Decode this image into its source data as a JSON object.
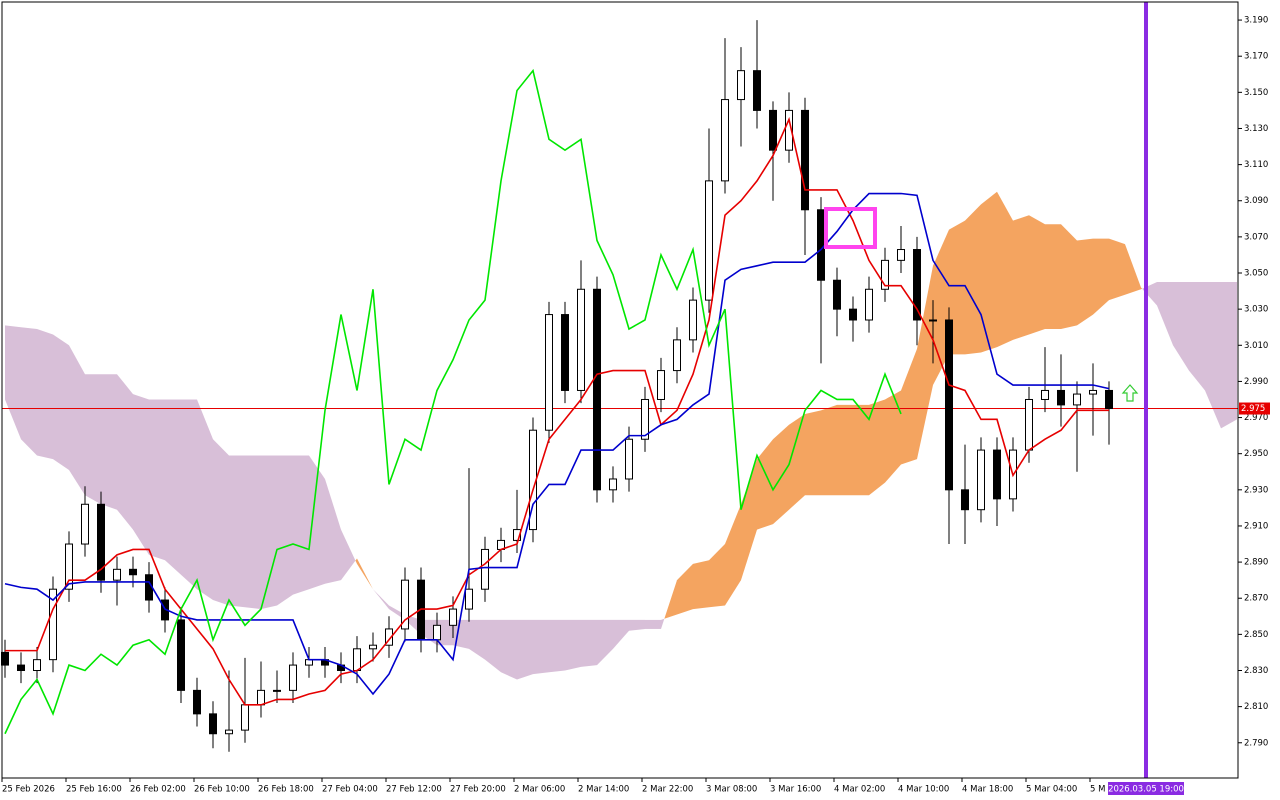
{
  "chart_data": {
    "type": "candlestick",
    "x": [
      "25 Feb 2026",
      null,
      null,
      null,
      "25 Feb 16:00",
      null,
      null,
      null,
      "26 Feb 02:00",
      null,
      null,
      null,
      "26 Feb 10:00",
      null,
      null,
      null,
      "26 Feb 18:00",
      null,
      null,
      null,
      "27 Feb 04:00",
      null,
      null,
      null,
      "27 Feb 12:00",
      null,
      null,
      null,
      "27 Feb 20:00",
      null,
      null,
      null,
      "2 Mar 06:00",
      null,
      null,
      null,
      "2 Mar 14:00",
      null,
      null,
      null,
      "2 Mar 22:00",
      null,
      null,
      null,
      "3 Mar 08:00",
      null,
      null,
      null,
      "3 Mar 16:00",
      null,
      null,
      null,
      "4 Mar 02:00",
      null,
      null,
      null,
      "4 Mar 10:00",
      null,
      null,
      null,
      "4 Mar 18:00",
      null,
      null,
      null,
      "5 Mar 04:00",
      null,
      null,
      null,
      "5 M",
      null,
      null,
      null,
      null,
      null,
      null,
      null,
      null,
      null
    ],
    "open": [
      2.84,
      2.833,
      2.83,
      2.836,
      2.875,
      2.9,
      2.922,
      2.88,
      2.886,
      2.883,
      2.869,
      2.858,
      2.819,
      2.806,
      2.795,
      2.797,
      2.811,
      2.819,
      2.819,
      2.833,
      2.836,
      2.833,
      2.83,
      2.842,
      2.844,
      2.853,
      2.88,
      2.847,
      2.855,
      2.864,
      2.875,
      2.897,
      2.902,
      2.908,
      2.963,
      3.027,
      2.985,
      3.041,
      2.93,
      2.936,
      2.958,
      2.98,
      2.996,
      3.013,
      3.035,
      3.101,
      3.146,
      3.162,
      3.14,
      3.118,
      3.14,
      3.085,
      3.046,
      3.03,
      3.024,
      3.041,
      3.057,
      3.063,
      3.024,
      3.024,
      2.93,
      2.919,
      2.952,
      2.925,
      2.952,
      2.98,
      2.985,
      2.977,
      2.983,
      2.985,
      null,
      null,
      null,
      null,
      null,
      null,
      null,
      null
    ],
    "high": [
      2.847,
      2.84,
      2.843,
      2.882,
      2.907,
      2.932,
      2.929,
      2.893,
      2.893,
      2.89,
      2.876,
      2.865,
      2.826,
      2.813,
      2.83,
      2.837,
      2.835,
      2.83,
      2.84,
      2.843,
      2.843,
      2.84,
      2.849,
      2.851,
      2.86,
      2.887,
      2.887,
      2.862,
      2.871,
      2.942,
      2.904,
      2.909,
      2.93,
      2.97,
      3.034,
      3.034,
      3.057,
      3.048,
      2.943,
      2.965,
      2.987,
      3.003,
      3.02,
      3.042,
      3.13,
      3.18,
      3.175,
      3.19,
      3.145,
      3.15,
      3.147,
      3.092,
      3.053,
      3.037,
      3.048,
      3.064,
      3.076,
      3.07,
      3.035,
      3.031,
      2.955,
      2.959,
      2.959,
      2.959,
      2.987,
      3.009,
      3.005,
      2.99,
      3.0,
      2.99,
      null,
      null,
      null,
      null,
      null,
      null,
      null,
      null
    ],
    "low": [
      2.826,
      2.823,
      2.823,
      2.829,
      2.868,
      2.893,
      2.873,
      2.866,
      2.876,
      2.862,
      2.851,
      2.812,
      2.799,
      2.787,
      2.785,
      2.79,
      2.804,
      2.812,
      2.812,
      2.826,
      2.826,
      2.823,
      2.823,
      2.835,
      2.837,
      2.846,
      2.84,
      2.84,
      2.848,
      2.857,
      2.868,
      2.89,
      2.895,
      2.901,
      2.956,
      2.978,
      2.978,
      2.923,
      2.923,
      2.929,
      2.951,
      2.973,
      2.989,
      3.006,
      3.028,
      3.094,
      3.12,
      3.13,
      3.09,
      3.111,
      3.06,
      3.0,
      3.015,
      3.012,
      3.017,
      3.034,
      3.05,
      3.01,
      3.0,
      2.9,
      2.9,
      2.912,
      2.91,
      2.918,
      2.945,
      2.973,
      2.965,
      2.94,
      2.96,
      2.955,
      null,
      null,
      null,
      null,
      null,
      null,
      null,
      null
    ],
    "close": [
      2.833,
      2.83,
      2.836,
      2.875,
      2.9,
      2.922,
      2.88,
      2.886,
      2.883,
      2.869,
      2.858,
      2.819,
      2.806,
      2.795,
      2.797,
      2.811,
      2.819,
      2.819,
      2.833,
      2.836,
      2.833,
      2.83,
      2.842,
      2.844,
      2.853,
      2.88,
      2.847,
      2.855,
      2.864,
      2.875,
      2.897,
      2.902,
      2.908,
      2.963,
      3.027,
      2.985,
      3.041,
      2.93,
      2.936,
      2.958,
      2.98,
      2.996,
      3.013,
      3.035,
      3.101,
      3.146,
      3.162,
      3.14,
      3.118,
      3.14,
      3.085,
      3.046,
      3.03,
      3.024,
      3.041,
      3.057,
      3.063,
      3.024,
      3.024,
      2.93,
      2.919,
      2.952,
      2.925,
      2.952,
      2.98,
      2.985,
      2.977,
      2.983,
      2.985,
      2.975,
      null,
      null,
      null,
      null,
      null,
      null,
      null,
      null
    ],
    "bull_color": "#ffffff",
    "bear_color": "#000000",
    "lines": [
      {
        "color": "#e60000",
        "values": [
          2.841,
          2.841,
          2.841,
          2.864,
          2.88,
          2.88,
          2.886,
          2.894,
          2.897,
          2.897,
          2.875,
          2.864,
          2.853,
          2.842,
          2.825,
          2.811,
          2.811,
          2.814,
          2.814,
          2.817,
          2.819,
          2.828,
          2.83,
          2.836,
          2.847,
          2.858,
          2.864,
          2.864,
          2.866,
          2.883,
          2.889,
          2.897,
          2.9,
          2.93,
          2.958,
          2.969,
          2.98,
          2.994,
          2.996,
          2.996,
          2.996,
          2.966,
          2.974,
          2.994,
          3.024,
          3.082,
          3.09,
          3.101,
          3.115,
          3.135,
          3.096,
          3.096,
          3.096,
          3.079,
          3.057,
          3.043,
          3.043,
          3.03,
          3.013,
          2.988,
          2.985,
          2.969,
          2.969,
          2.938,
          2.952,
          2.958,
          2.963,
          2.974,
          2.974,
          2.974,
          null,
          null,
          null,
          null,
          null,
          null,
          null,
          null
        ]
      },
      {
        "color": "#0000cd",
        "values": [
          2.878,
          2.876,
          2.875,
          2.869,
          2.878,
          2.879,
          2.879,
          2.879,
          2.879,
          2.879,
          2.864,
          2.86,
          2.858,
          2.858,
          2.858,
          2.858,
          2.858,
          2.858,
          2.858,
          2.836,
          2.836,
          2.833,
          2.828,
          2.817,
          2.828,
          2.847,
          2.847,
          2.847,
          2.836,
          2.886,
          2.887,
          2.887,
          2.887,
          2.922,
          2.933,
          2.933,
          2.952,
          2.952,
          2.952,
          2.96,
          2.96,
          2.966,
          2.969,
          2.977,
          2.983,
          3.046,
          3.052,
          3.054,
          3.056,
          3.056,
          3.056,
          3.063,
          3.073,
          3.085,
          3.094,
          3.094,
          3.094,
          3.093,
          3.057,
          3.043,
          3.043,
          3.027,
          2.994,
          2.988,
          2.988,
          2.988,
          2.988,
          2.988,
          2.988,
          2.986,
          null,
          null,
          null,
          null,
          null,
          null,
          null,
          null
        ]
      },
      {
        "color": "#00e600",
        "values": [
          2.795,
          2.814,
          2.825,
          2.806,
          2.833,
          2.83,
          2.839,
          2.833,
          2.844,
          2.847,
          2.839,
          2.864,
          2.88,
          2.847,
          2.869,
          2.855,
          2.864,
          2.897,
          2.9,
          2.897,
          2.974,
          3.027,
          2.985,
          3.041,
          2.933,
          2.958,
          2.952,
          2.985,
          3.002,
          3.024,
          3.035,
          3.101,
          3.151,
          3.162,
          3.124,
          3.118,
          3.124,
          3.068,
          3.049,
          3.019,
          3.024,
          3.06,
          3.041,
          3.063,
          3.01,
          3.03,
          2.919,
          2.949,
          2.93,
          2.944,
          2.974,
          2.985,
          2.98,
          2.98,
          2.969,
          2.994,
          2.972,
          null,
          null,
          null,
          null,
          null,
          null,
          null,
          null,
          null,
          null,
          null,
          null,
          null,
          null,
          null,
          null,
          null,
          null,
          null,
          null,
          null
        ]
      }
    ],
    "cloud": {
      "span_a": [
        2.98,
        2.958,
        2.949,
        2.947,
        2.941,
        2.927,
        2.922,
        2.919,
        2.908,
        2.894,
        2.891,
        2.883,
        2.875,
        2.869,
        2.866,
        2.865,
        2.864,
        2.866,
        2.872,
        2.875,
        2.878,
        2.88,
        2.892,
        2.875,
        2.864,
        2.858,
        2.85,
        2.844,
        2.844,
        2.842,
        2.836,
        2.829,
        2.825,
        2.828,
        2.829,
        2.83,
        2.832,
        2.833,
        2.842,
        2.852,
        2.853,
        2.853,
        2.88,
        2.889,
        2.891,
        2.9,
        2.922,
        2.947,
        2.958,
        2.966,
        2.972,
        2.974,
        2.977,
        2.977,
        2.977,
        2.98,
        2.985,
        3.008,
        3.054,
        3.074,
        3.079,
        3.088,
        3.095,
        3.079,
        3.082,
        3.077,
        3.077,
        3.068,
        3.069,
        3.069,
        3.066,
        3.042,
        3.032,
        3.01,
        2.996,
        2.985,
        2.964,
        2.969
      ],
      "span_b": [
        3.021,
        3.02,
        3.019,
        3.016,
        3.01,
        2.994,
        2.994,
        2.994,
        2.983,
        2.98,
        2.98,
        2.98,
        2.98,
        2.958,
        2.949,
        2.949,
        2.949,
        2.949,
        2.949,
        2.949,
        2.936,
        2.908,
        2.889,
        2.875,
        2.866,
        2.861,
        2.858,
        2.858,
        2.858,
        2.858,
        2.858,
        2.858,
        2.858,
        2.858,
        2.858,
        2.858,
        2.858,
        2.858,
        2.858,
        2.858,
        2.858,
        2.858,
        2.861,
        2.864,
        2.865,
        2.866,
        2.88,
        2.908,
        2.911,
        2.919,
        2.927,
        2.927,
        2.927,
        2.927,
        2.927,
        2.934,
        2.944,
        2.947,
        2.988,
        3.005,
        3.005,
        3.006,
        3.009,
        3.013,
        3.016,
        3.019,
        3.019,
        3.021,
        3.027,
        3.035,
        3.038,
        3.041,
        3.045,
        3.045,
        3.045,
        3.045,
        3.045,
        3.045
      ],
      "bull_color": "#f4a460",
      "bear_color": "#d8bfd8"
    },
    "ylim": [
      2.7705,
      3.2
    ],
    "yticks": [
      {
        "value": 2.79,
        "label": "2.790"
      },
      {
        "value": 2.81,
        "label": "2.810"
      },
      {
        "value": 2.83,
        "label": "2.830"
      },
      {
        "value": 2.85,
        "label": "2.850"
      },
      {
        "value": 2.87,
        "label": "2.870"
      },
      {
        "value": 2.89,
        "label": "2.890"
      },
      {
        "value": 2.91,
        "label": "2.910"
      },
      {
        "value": 2.93,
        "label": "2.930"
      },
      {
        "value": 2.95,
        "label": "2.950"
      },
      {
        "value": 2.97,
        "label": "2.970"
      },
      {
        "value": 2.99,
        "label": "2.990"
      },
      {
        "value": 3.01,
        "label": "3.010"
      },
      {
        "value": 3.03,
        "label": "3.030"
      },
      {
        "value": 3.05,
        "label": "3.050"
      },
      {
        "value": 3.07,
        "label": "3.070"
      },
      {
        "value": 3.09,
        "label": "3.090"
      },
      {
        "value": 3.11,
        "label": "3.110"
      },
      {
        "value": 3.13,
        "label": "3.130"
      },
      {
        "value": 3.15,
        "label": "3.150"
      },
      {
        "value": 3.17,
        "label": "3.170"
      },
      {
        "value": 3.19,
        "label": "3.190"
      }
    ],
    "current_price": {
      "value": 2.975,
      "label": "2.975"
    },
    "price_color": "#e60000",
    "marker_label": "2026.03.05 19:00"
  }
}
